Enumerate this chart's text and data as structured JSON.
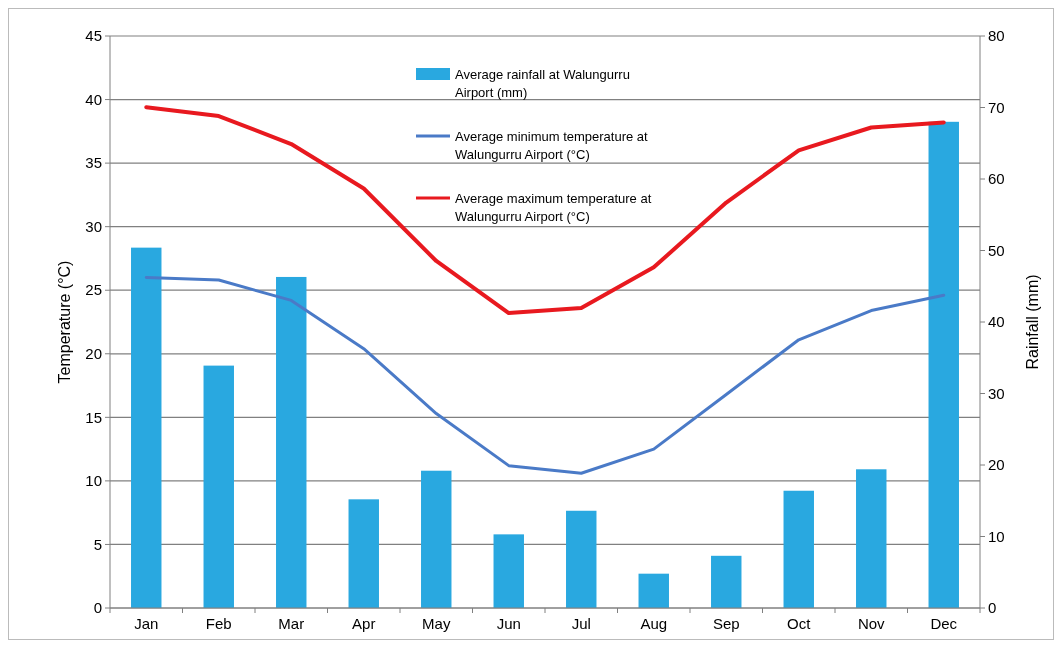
{
  "chart_data": {
    "type": "bar",
    "categories": [
      "Jan",
      "Feb",
      "Mar",
      "Apr",
      "May",
      "Jun",
      "Jul",
      "Aug",
      "Sep",
      "Oct",
      "Nov",
      "Dec"
    ],
    "ylabel": "Temperature (°C)",
    "y2label": "Rainfall (mm)",
    "ylim": [
      0,
      45
    ],
    "yticks": [
      0,
      5,
      10,
      15,
      20,
      25,
      30,
      35,
      40,
      45
    ],
    "y2lim": [
      0,
      80
    ],
    "y2ticks": [
      0,
      10,
      20,
      30,
      40,
      50,
      60,
      70,
      80
    ],
    "grid": "y",
    "legend": "top",
    "series": [
      {
        "name": "Average rainfall at Walungurru Airport (mm)",
        "axis": "y2",
        "color": "#29a8e0",
        "values": [
          50.4,
          33.9,
          46.3,
          15.2,
          19.2,
          10.3,
          13.6,
          4.8,
          7.3,
          16.4,
          19.4,
          68.0
        ]
      },
      {
        "name": "Average minimum temperature at Walungurru Airport (°C)",
        "type": "line",
        "color": "#4a7ac7",
        "values": [
          26.0,
          25.8,
          24.2,
          20.4,
          15.3,
          11.2,
          10.6,
          12.5,
          16.8,
          21.1,
          23.4,
          24.6
        ]
      },
      {
        "name": "Average maximum temperature at Walungurru Airport (°C)",
        "type": "line",
        "color": "#e8191f",
        "values": [
          39.4,
          38.7,
          36.5,
          33.0,
          27.3,
          23.2,
          23.6,
          26.8,
          31.9,
          36.0,
          37.8,
          38.2
        ]
      }
    ]
  }
}
